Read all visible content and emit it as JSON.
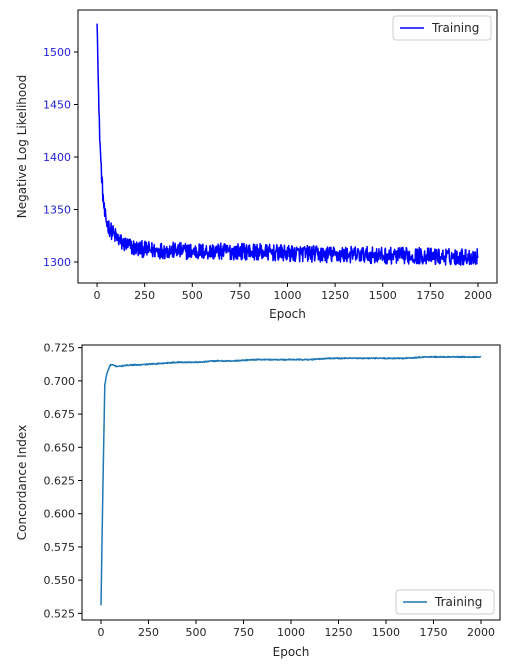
{
  "chart_data": [
    {
      "type": "line",
      "xlabel": "Epoch",
      "ylabel": "Negative Log Likelihood",
      "xlim": [
        -100,
        2100
      ],
      "ylim": [
        1280,
        1540
      ],
      "x_ticks": [
        0,
        250,
        500,
        750,
        1000,
        1250,
        1500,
        1750,
        2000
      ],
      "y_ticks": [
        1300,
        1350,
        1400,
        1450,
        1500
      ],
      "y_tick_color": "#1f1fd6",
      "legend_position": "upper right",
      "grid": false,
      "series": [
        {
          "name": "Training",
          "color": "#0000ff",
          "x": [
            0,
            5,
            10,
            20,
            30,
            40,
            50,
            60,
            80,
            100,
            130,
            160,
            200,
            250,
            300,
            400,
            500,
            600,
            700,
            800,
            900,
            1000,
            1100,
            1200,
            1300,
            1400,
            1500,
            1600,
            1700,
            1800,
            1900,
            2000
          ],
          "y": [
            1527,
            1495,
            1440,
            1395,
            1365,
            1345,
            1338,
            1334,
            1328,
            1324,
            1318,
            1316,
            1313,
            1312,
            1311,
            1311,
            1310,
            1310,
            1310,
            1310,
            1309,
            1308,
            1308,
            1307,
            1307,
            1307,
            1306,
            1306,
            1306,
            1305,
            1305,
            1305
          ],
          "noise_amplitude": 8
        }
      ]
    },
    {
      "type": "line",
      "xlabel": "Epoch",
      "ylabel": "Concordance Index",
      "xlim": [
        -100,
        2100
      ],
      "ylim": [
        0.52,
        0.727
      ],
      "x_ticks": [
        0,
        250,
        500,
        750,
        1000,
        1250,
        1500,
        1750,
        2000
      ],
      "y_ticks": [
        0.525,
        0.55,
        0.575,
        0.6,
        0.625,
        0.65,
        0.675,
        0.7,
        0.725
      ],
      "y_tick_labels": [
        "0.525",
        "0.550",
        "0.575",
        "0.600",
        "0.625",
        "0.650",
        "0.675",
        "0.700",
        "0.725"
      ],
      "legend_position": "lower right",
      "grid": false,
      "series": [
        {
          "name": "Training",
          "color": "#1f77b4",
          "x": [
            0,
            10,
            20,
            30,
            40,
            50,
            60,
            80,
            100,
            150,
            200,
            300,
            400,
            500,
            600,
            700,
            800,
            900,
            1000,
            1100,
            1200,
            1300,
            1400,
            1500,
            1600,
            1700,
            1800,
            1900,
            2000
          ],
          "y": [
            0.531,
            0.62,
            0.697,
            0.705,
            0.709,
            0.712,
            0.712,
            0.711,
            0.711,
            0.712,
            0.712,
            0.713,
            0.714,
            0.714,
            0.715,
            0.715,
            0.716,
            0.716,
            0.716,
            0.716,
            0.717,
            0.717,
            0.717,
            0.717,
            0.717,
            0.718,
            0.718,
            0.718,
            0.718
          ],
          "noise_amplitude": 0.0004
        }
      ]
    }
  ]
}
